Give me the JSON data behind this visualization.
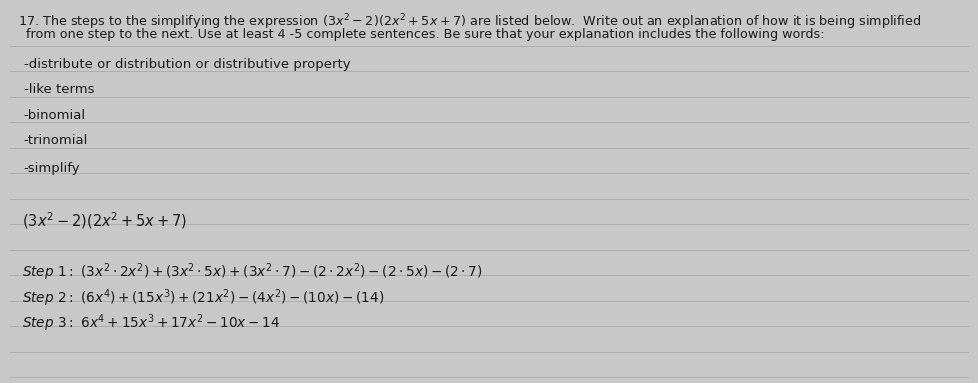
{
  "fig_bg": "#c8c8c8",
  "paper_bg": "#e6e4e0",
  "line_color": "#b0aeaa",
  "text_color": "#1a1a1a",
  "title1": "17. The steps to the simplifying the expression $(3x^2-2)(2x^2+5x+7)$ are listed below.  Write out an explanation of how it is being simplified",
  "title2": "  from one step to the next. Use at least 4 -5 complete sentences. Be sure that your explanation includes the following words:",
  "bullet1": "-distribute or distribution or distributive property",
  "bullet2": "-like terms",
  "bullet3": "-binomial",
  "bullet4": "-trinomial",
  "bullet5": "-simplify",
  "expr0": "$(3x^2-2)(2x^2+5x+7)$",
  "step1": "$(3x^2 \\cdot 2x^2)+(3x^2 \\cdot 5x)+(3x^2 \\cdot 7)-(2 \\cdot 2x^2)-(2 \\cdot 5x)-(2 \\cdot 7)$",
  "step2": "$(6x^4)+(15x^3)+(21x^2)-(4x^2)-(10x)-(14)$",
  "step3": "$6x^4+15x^3+17x^2-10x-14$",
  "font_title": 9.2,
  "font_body": 9.5,
  "font_math": 10.5,
  "font_step": 9.8
}
